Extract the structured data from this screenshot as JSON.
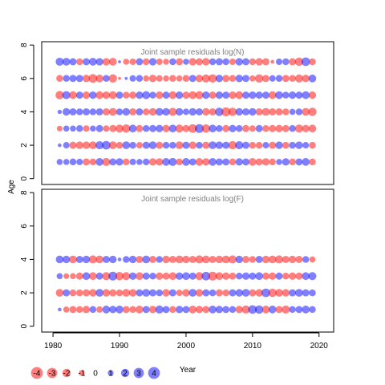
{
  "colors": {
    "negative": "#ff0000",
    "positive": "#0000ff",
    "title": "#808080",
    "frame": "#000000"
  },
  "chart_data": [
    {
      "type": "scatter",
      "title": "Joint sample residuals log(N)",
      "ylabel": "Age",
      "xlabel": "",
      "xlim": [
        1978.3,
        2022.2
      ],
      "ylim": [
        -0.35,
        8.2
      ],
      "yticks": [
        "0",
        "2",
        "4",
        "6",
        "8"
      ],
      "grid": false,
      "seed": 11,
      "rows": [
        {
          "age": 1,
          "magnitudes": [
            1.6,
            1.6,
            2.0,
            1.8,
            2.2,
            2.0,
            2.6,
            2.8,
            2.2,
            2.4,
            2.0,
            1.8,
            1.6,
            2.0,
            2.4,
            2.4,
            2.6,
            2.8,
            2.0,
            2.6,
            2.2,
            2.6,
            2.4,
            2.6,
            2.2,
            2.2,
            2.0,
            2.4,
            2.2,
            2.6,
            2.2,
            2.4,
            2.0,
            1.6,
            2.4,
            2.0,
            2.2,
            2.6,
            2.0
          ]
        },
        {
          "age": 2,
          "magnitudes": [
            0.6,
            1.8,
            2.2,
            2.4,
            2.4,
            2.6,
            2.8,
            3.2,
            2.6,
            2.0,
            2.6,
            2.0,
            1.8,
            2.2,
            2.6,
            2.2,
            2.0,
            2.0,
            2.6,
            2.2,
            2.4,
            2.0,
            2.2,
            2.6,
            2.4,
            2.2,
            3.0,
            2.8,
            2.2,
            2.0,
            2.0,
            1.8,
            2.2,
            2.4,
            2.0,
            2.0,
            2.4,
            1.8,
            2.0
          ]
        },
        {
          "age": 3,
          "magnitudes": [
            1.4,
            1.6,
            1.6,
            2.0,
            1.8,
            1.6,
            2.2,
            1.8,
            2.2,
            2.8,
            3.0,
            2.6,
            2.2,
            2.0,
            2.2,
            2.4,
            2.4,
            2.6,
            2.8,
            2.2,
            3.2,
            3.4,
            3.0,
            2.6,
            2.0,
            2.2,
            2.4,
            2.0,
            2.2,
            1.8,
            2.2,
            2.0,
            2.2,
            2.4,
            2.2,
            2.0,
            2.8,
            2.4,
            2.6
          ]
        },
        {
          "age": 4,
          "magnitudes": [
            0.8,
            2.4,
            2.2,
            2.0,
            2.2,
            2.0,
            2.2,
            2.2,
            2.6,
            2.0,
            2.4,
            2.2,
            2.2,
            2.0,
            2.4,
            2.6,
            2.4,
            2.8,
            2.4,
            1.8,
            2.4,
            2.2,
            2.4,
            2.2,
            3.0,
            3.4,
            3.0,
            2.4,
            2.2,
            2.4,
            2.2,
            2.6,
            2.2,
            2.2,
            2.0,
            1.6,
            2.0,
            2.6,
            3.0
          ]
        },
        {
          "age": 5,
          "magnitudes": [
            3.0,
            2.8,
            2.6,
            2.2,
            2.4,
            2.4,
            2.6,
            2.4,
            2.6,
            2.2,
            2.0,
            2.2,
            2.4,
            2.8,
            2.0,
            2.4,
            2.2,
            2.6,
            2.4,
            2.2,
            2.6,
            2.8,
            2.4,
            2.2,
            2.4,
            2.2,
            2.4,
            2.6,
            2.2,
            2.4,
            2.2,
            2.2,
            2.6,
            2.6,
            2.0,
            2.4,
            2.2,
            2.6,
            2.4
          ]
        },
        {
          "age": 6,
          "magnitudes": [
            2.0,
            2.0,
            2.2,
            2.2,
            2.4,
            3.2,
            2.6,
            2.0,
            3.0,
            0.4,
            0.4,
            1.8,
            2.0,
            1.6,
            2.4,
            1.8,
            1.6,
            2.0,
            1.6,
            2.0,
            2.2,
            2.4,
            2.8,
            3.0,
            2.4,
            2.2,
            2.0,
            2.4,
            2.2,
            1.6,
            3.0,
            2.2,
            1.8,
            2.0,
            2.2,
            2.0,
            2.8,
            2.4,
            2.6
          ]
        },
        {
          "age": 7,
          "magnitudes": [
            2.8,
            2.6,
            2.2,
            2.0,
            2.2,
            2.6,
            2.4,
            2.4,
            2.6,
            0.4,
            1.6,
            1.8,
            2.2,
            2.0,
            2.4,
            1.8,
            1.6,
            2.0,
            2.2,
            1.6,
            2.4,
            2.2,
            2.4,
            2.0,
            2.2,
            2.0,
            1.8,
            2.4,
            2.2,
            2.0,
            2.4,
            2.2,
            0.6,
            1.8,
            2.0,
            2.2,
            3.0,
            3.2,
            2.0
          ]
        }
      ]
    },
    {
      "type": "scatter",
      "title": "Joint sample residuals log(F)",
      "ylabel": "",
      "xlabel": "Year",
      "xlim": [
        1978.3,
        2022.2
      ],
      "ylim": [
        -0.35,
        8.2
      ],
      "xticks": [
        "1980",
        "1990",
        "2000",
        "2010",
        "2020"
      ],
      "yticks": [
        "0",
        "2",
        "4",
        "6",
        "8"
      ],
      "grid": false,
      "seed": 29,
      "rows": [
        {
          "age": 1,
          "magnitudes": [
            0.6,
            1.6,
            2.2,
            2.0,
            2.4,
            2.0,
            1.8,
            2.6,
            2.4,
            2.6,
            2.2,
            2.0,
            2.6,
            2.2,
            2.4,
            2.8,
            2.2,
            2.0,
            2.4,
            2.2,
            2.6,
            2.4,
            2.2,
            2.6,
            2.4,
            2.2,
            2.0,
            2.4,
            2.8,
            3.2,
            3.0,
            2.6,
            2.6,
            2.2,
            2.8,
            2.0,
            2.2,
            2.6,
            2.0
          ]
        },
        {
          "age": 2,
          "magnitudes": [
            2.6,
            2.2,
            2.0,
            2.0,
            2.2,
            2.4,
            2.6,
            2.4,
            2.2,
            2.0,
            2.6,
            2.4,
            2.2,
            2.6,
            2.2,
            2.0,
            2.4,
            2.2,
            1.8,
            2.4,
            2.6,
            2.4,
            2.2,
            2.0,
            2.2,
            2.0,
            2.2,
            2.4,
            2.6,
            2.2,
            2.4,
            3.2,
            3.0,
            2.6,
            2.4,
            2.2,
            2.6,
            2.2,
            2.0
          ]
        },
        {
          "age": 3,
          "magnitudes": [
            1.6,
            1.4,
            1.6,
            2.2,
            2.6,
            2.6,
            2.2,
            2.8,
            3.4,
            3.0,
            2.8,
            2.4,
            2.6,
            2.2,
            2.0,
            2.4,
            2.2,
            2.6,
            2.4,
            2.6,
            2.2,
            2.8,
            3.2,
            3.4,
            2.6,
            2.4,
            2.2,
            2.0,
            2.4,
            2.2,
            2.6,
            2.2,
            2.4,
            2.2,
            2.0,
            2.4,
            2.2,
            2.6,
            2.8
          ]
        },
        {
          "age": 4,
          "magnitudes": [
            2.6,
            2.4,
            2.6,
            2.2,
            2.4,
            2.8,
            2.6,
            2.2,
            2.4,
            0.6,
            2.0,
            2.4,
            2.2,
            2.6,
            2.2,
            2.0,
            2.4,
            2.2,
            2.6,
            2.4,
            2.2,
            2.8,
            2.6,
            2.2,
            2.4,
            2.6,
            2.8,
            2.4,
            2.2,
            2.0,
            2.2,
            2.4,
            2.6,
            2.8,
            2.2,
            2.4,
            2.2,
            2.0,
            1.6
          ]
        }
      ]
    }
  ],
  "legend": {
    "placement": "bottom-left",
    "items": [
      {
        "label": "-4",
        "value": -4
      },
      {
        "label": "-3",
        "value": -3
      },
      {
        "label": "-2",
        "value": -2
      },
      {
        "label": "-1",
        "value": -1
      },
      {
        "label": "0",
        "value": 0
      },
      {
        "label": "1",
        "value": 1
      },
      {
        "label": "2",
        "value": 2
      },
      {
        "label": "3",
        "value": 3
      },
      {
        "label": "4",
        "value": 4
      }
    ]
  }
}
